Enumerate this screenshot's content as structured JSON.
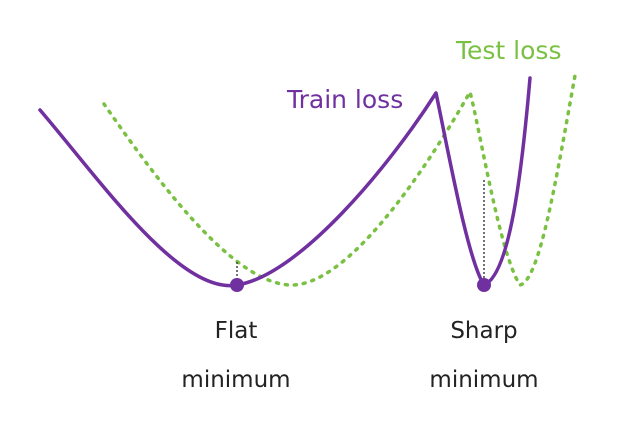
{
  "labels": {
    "train_loss": "Train loss",
    "test_loss": "Test loss",
    "flat_line1": "Flat",
    "flat_line2": "minimum",
    "sharp_line1": "Sharp",
    "sharp_line2": "minimum"
  },
  "colors": {
    "train": "#7030a0",
    "test": "#7ac143",
    "gap": "#444444",
    "text": "#222222",
    "marker": "#7030a0"
  }
}
